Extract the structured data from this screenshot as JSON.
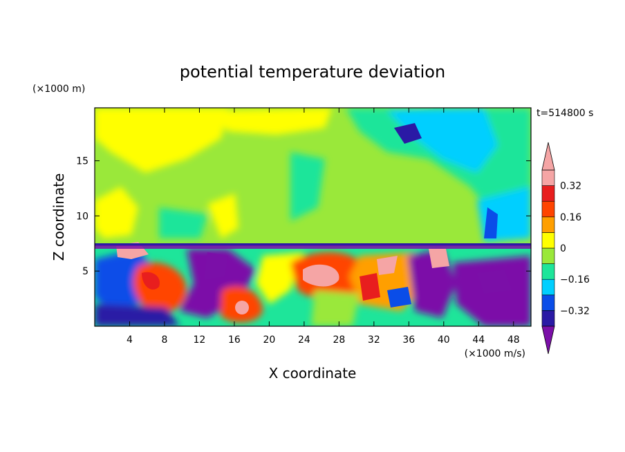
{
  "chart_data": {
    "type": "heatmap",
    "title": "potential temperature deviation",
    "xlabel": "X coordinate",
    "ylabel": "Z coordinate",
    "x_unit": "(×1000 m/s)",
    "y_unit": "(×1000 m)",
    "time_label": "t=514800 s",
    "xlim": [
      0,
      50
    ],
    "ylim": [
      0,
      19.8
    ],
    "x_ticks": [
      4,
      8,
      12,
      16,
      20,
      24,
      28,
      32,
      36,
      40,
      44,
      48
    ],
    "y_ticks": [
      5,
      10,
      15
    ],
    "x_tick_labels": [
      "4",
      "8",
      "12",
      "16",
      "20",
      "24",
      "28",
      "32",
      "36",
      "40",
      "44",
      "48"
    ],
    "y_tick_labels": [
      "5",
      "10",
      "15"
    ],
    "colorbar": {
      "levels": [
        -0.4,
        -0.32,
        -0.24,
        -0.16,
        -0.08,
        0,
        0.08,
        0.16,
        0.24,
        0.32,
        0.4
      ],
      "tick_values": [
        0.32,
        0.16,
        0,
        -0.16,
        -0.32
      ],
      "tick_labels": [
        "0.32",
        "0.16",
        "0",
        "−0.16",
        "−0.32"
      ],
      "colors": [
        "#7b0fa8",
        "#2a1aa5",
        "#0a4de8",
        "#00cfff",
        "#1ee59a",
        "#9ae83a",
        "#ffff00",
        "#ff9f00",
        "#ff4400",
        "#e81e1e",
        "#f5a5a5"
      ]
    },
    "grid": false
  },
  "palette": {
    "below_min": "#7b0fa8",
    "above_max": "#f5a5a5"
  }
}
